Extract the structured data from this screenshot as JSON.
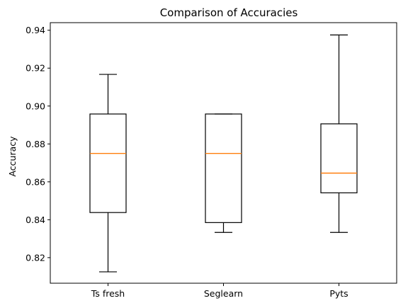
{
  "chart_data": {
    "type": "box",
    "title": "Comparison of Accuracies",
    "xlabel": "",
    "ylabel": "Accuracy",
    "ylim": [
      0.8065,
      0.944
    ],
    "y_ticks": [
      "0.82",
      "0.84",
      "0.86",
      "0.88",
      "0.90",
      "0.92",
      "0.94"
    ],
    "y_tick_values": [
      0.82,
      0.84,
      0.86,
      0.88,
      0.9,
      0.92,
      0.94
    ],
    "categories": [
      "Ts fresh",
      "Seglearn",
      "Pyts"
    ],
    "boxes": [
      {
        "name": "Ts fresh",
        "whisker_low": 0.8125,
        "q1": 0.8438,
        "median": 0.875,
        "q3": 0.8958,
        "whisker_high": 0.9167
      },
      {
        "name": "Seglearn",
        "whisker_low": 0.8333,
        "q1": 0.8385,
        "median": 0.875,
        "q3": 0.8958,
        "whisker_high": 0.8958
      },
      {
        "name": "Pyts",
        "whisker_low": 0.8333,
        "q1": 0.8542,
        "median": 0.8646,
        "q3": 0.8906,
        "whisker_high": 0.9375
      }
    ],
    "grid": false,
    "legend": "none",
    "colors": {
      "box": "#000000",
      "median": "#ff7f0e",
      "background": "#ffffff"
    }
  }
}
